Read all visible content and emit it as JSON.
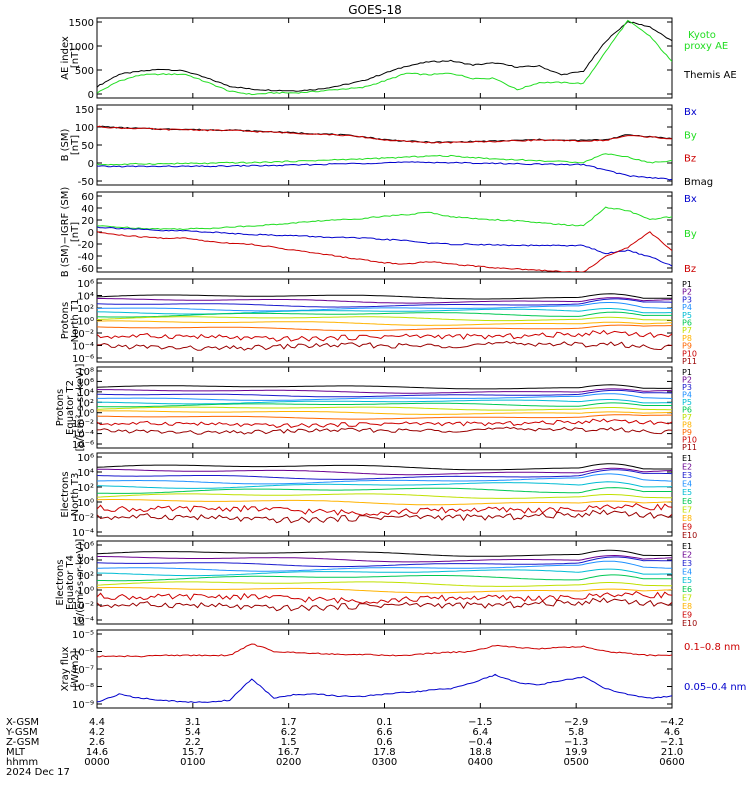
{
  "title": "GOES-18",
  "colors": {
    "black": "#000000",
    "red": "#cc0000",
    "green": "#22dd22",
    "blue": "#0000cc",
    "kyoto": "#22dd22"
  },
  "chart_data": [
    {
      "type": "line",
      "ylabel": [
        "AE index",
        "[nT]"
      ],
      "yticks": [
        "1500",
        "1000",
        "500",
        "0"
      ],
      "ylim": [
        0,
        1550
      ],
      "legend": [
        {
          "name": "Kyoto\nproxy AE",
          "color": "#22dd22"
        },
        {
          "name": "Themis AE",
          "color": "#000000"
        }
      ],
      "series": [
        {
          "name": "Themis AE",
          "color": "#000000",
          "values": [
            220,
            460,
            520,
            560,
            520,
            380,
            230,
            170,
            150,
            140,
            170,
            240,
            330,
            480,
            620,
            700,
            720,
            640,
            680,
            600,
            620,
            450,
            520,
            1100,
            1480,
            1380,
            1100
          ]
        },
        {
          "name": "Kyoto proxy AE",
          "color": "#22dd22",
          "values": [
            100,
            330,
            450,
            460,
            460,
            300,
            130,
            70,
            100,
            100,
            130,
            170,
            200,
            330,
            480,
            450,
            480,
            380,
            380,
            160,
            300,
            300,
            280,
            900,
            1500,
            1200,
            700
          ]
        }
      ]
    },
    {
      "type": "line",
      "ylabel": [
        "B (SM)",
        "[nT]"
      ],
      "yticks": [
        "150",
        "100",
        "50",
        "0",
        "-50"
      ],
      "ylim": [
        -60,
        155
      ],
      "legend": [
        {
          "name": "Bx",
          "color": "#0000cc"
        },
        {
          "name": "By",
          "color": "#22dd22"
        },
        {
          "name": "Bz",
          "color": "#cc0000"
        },
        {
          "name": "Bmag",
          "color": "#000000"
        }
      ],
      "series": [
        {
          "name": "Bmag",
          "color": "#000000",
          "values": [
            98,
            94,
            92,
            90,
            90,
            88,
            88,
            85,
            83,
            80,
            78,
            75,
            70,
            62,
            58,
            55,
            55,
            57,
            58,
            60,
            62,
            60,
            60,
            62,
            75,
            70,
            65
          ]
        },
        {
          "name": "Bz",
          "color": "#cc0000",
          "values": [
            97,
            93,
            92,
            89,
            89,
            87,
            87,
            84,
            82,
            79,
            77,
            74,
            69,
            61,
            57,
            54,
            54,
            56,
            57,
            59,
            61,
            59,
            58,
            60,
            73,
            69,
            64
          ]
        },
        {
          "name": "By",
          "color": "#22dd22",
          "values": [
            -5,
            -5,
            -3,
            -3,
            -2,
            -2,
            0,
            0,
            2,
            4,
            6,
            8,
            10,
            12,
            15,
            18,
            18,
            14,
            10,
            8,
            5,
            3,
            1,
            25,
            15,
            0,
            5
          ]
        },
        {
          "name": "Bx",
          "color": "#0000cc",
          "values": [
            -10,
            -10,
            -10,
            -10,
            -10,
            -10,
            -9,
            -8,
            -8,
            -6,
            -5,
            -3,
            -2,
            0,
            1,
            1,
            0,
            -1,
            -2,
            -3,
            -4,
            -5,
            -5,
            -20,
            -35,
            -40,
            -45
          ]
        }
      ]
    },
    {
      "type": "line",
      "ylabel": [
        "B (SM)−IGRF (SM)",
        "[nT]"
      ],
      "yticks": [
        "60",
        "40",
        "20",
        "0",
        "-20",
        "-40",
        "-60"
      ],
      "ylim": [
        -65,
        65
      ],
      "legend": [
        {
          "name": "Bx",
          "color": "#0000cc"
        },
        {
          "name": "By",
          "color": "#22dd22"
        },
        {
          "name": "Bz",
          "color": "#cc0000"
        }
      ],
      "series": [
        {
          "name": "By",
          "color": "#22dd22",
          "values": [
            10,
            8,
            6,
            5,
            5,
            6,
            8,
            10,
            12,
            15,
            18,
            20,
            22,
            26,
            28,
            32,
            25,
            22,
            20,
            18,
            15,
            12,
            10,
            40,
            35,
            20,
            25
          ]
        },
        {
          "name": "Bx",
          "color": "#0000cc",
          "values": [
            8,
            6,
            4,
            2,
            2,
            0,
            -2,
            -4,
            -5,
            -6,
            -8,
            -9,
            -10,
            -12,
            -14,
            -18,
            -20,
            -20,
            -21,
            -22,
            -22,
            -22,
            -22,
            -35,
            -30,
            -40,
            -55
          ]
        },
        {
          "name": "Bz",
          "color": "#cc0000",
          "values": [
            0,
            -5,
            -8,
            -10,
            -10,
            -15,
            -18,
            -20,
            -25,
            -30,
            -35,
            -40,
            -45,
            -50,
            -52,
            -48,
            -52,
            -55,
            -58,
            -60,
            -62,
            -64,
            -65,
            -40,
            -25,
            0,
            -30
          ]
        }
      ]
    },
    {
      "type": "line",
      "scale": "log",
      "ylabel": [
        "Protons",
        "North T1"
      ],
      "yticks": [
        "10⁶",
        "10⁴",
        "10²",
        "10⁰",
        "10⁻²",
        "10⁻⁴",
        "10⁻⁶"
      ],
      "ylim_exp": [
        -7,
        6
      ],
      "channels": [
        {
          "name": "P1",
          "color": "#000000",
          "base": 3.2
        },
        {
          "name": "P2",
          "color": "#6a0090",
          "base": 2.6
        },
        {
          "name": "P3",
          "color": "#1a1acc",
          "base": 2.0
        },
        {
          "name": "P4",
          "color": "#1e90ff",
          "base": 1.4
        },
        {
          "name": "P5",
          "color": "#00bcd4",
          "base": 0.9
        },
        {
          "name": "P6",
          "color": "#00c853",
          "base": 0.4
        },
        {
          "name": "P7",
          "color": "#c0e000",
          "base": -0.2
        },
        {
          "name": "P8",
          "color": "#ffb300",
          "base": -0.9
        },
        {
          "name": "P9",
          "color": "#ff6600",
          "base": -1.7
        },
        {
          "name": "P10",
          "color": "#cc0000",
          "base": -3.0
        },
        {
          "name": "P11",
          "color": "#990000",
          "base": -4.5
        }
      ]
    },
    {
      "type": "line",
      "scale": "log",
      "ylabel": [
        "Protons",
        "Equator T2",
        "[p/(cm²-s-sr-keV)]"
      ],
      "yticks": [
        "10⁸",
        "10⁶",
        "10⁴",
        "10²",
        "10⁰",
        "10⁻²",
        "10⁻⁴",
        "10⁻⁶"
      ],
      "ylim_exp": [
        -7,
        9
      ],
      "channels": [
        {
          "name": "P1",
          "color": "#000000",
          "base": 5.0
        },
        {
          "name": "P2",
          "color": "#6a0090",
          "base": 4.2
        },
        {
          "name": "P3",
          "color": "#1a1acc",
          "base": 3.5
        },
        {
          "name": "P4",
          "color": "#1e90ff",
          "base": 2.8
        },
        {
          "name": "P5",
          "color": "#00bcd4",
          "base": 2.1
        },
        {
          "name": "P6",
          "color": "#00c853",
          "base": 1.5
        },
        {
          "name": "P7",
          "color": "#c0e000",
          "base": 0.8
        },
        {
          "name": "P8",
          "color": "#ffb300",
          "base": 0.0
        },
        {
          "name": "P9",
          "color": "#ff6600",
          "base": -0.9
        },
        {
          "name": "P10",
          "color": "#cc0000",
          "base": -2.2
        },
        {
          "name": "P11",
          "color": "#990000",
          "base": -3.6
        }
      ]
    },
    {
      "type": "line",
      "scale": "log",
      "ylabel": [
        "Electrons",
        "North T3"
      ],
      "yticks": [
        "10⁶",
        "10⁴",
        "10²",
        "10⁰",
        "10⁻²",
        "10⁻⁴"
      ],
      "ylim_exp": [
        -4.5,
        6.5
      ],
      "channels": [
        {
          "name": "E1",
          "color": "#000000",
          "base": 4.6
        },
        {
          "name": "E2",
          "color": "#6a0090",
          "base": 4.0
        },
        {
          "name": "E3",
          "color": "#1a1acc",
          "base": 3.4
        },
        {
          "name": "E4",
          "color": "#1e90ff",
          "base": 2.8
        },
        {
          "name": "E5",
          "color": "#00bcd4",
          "base": 2.2
        },
        {
          "name": "E6",
          "color": "#00c853",
          "base": 1.5
        },
        {
          "name": "E7",
          "color": "#c0e000",
          "base": 0.8
        },
        {
          "name": "E8",
          "color": "#ffb300",
          "base": 0.0
        },
        {
          "name": "E9",
          "color": "#cc0000",
          "base": -1.0
        },
        {
          "name": "E10",
          "color": "#990000",
          "base": -2.0
        }
      ]
    },
    {
      "type": "line",
      "scale": "log",
      "ylabel": [
        "Electrons",
        "Equator T4",
        "[e/(cm²-s-sr-keV)]"
      ],
      "yticks": [
        "10⁶",
        "10⁴",
        "10²",
        "10⁰",
        "10⁻²",
        "10⁻⁴"
      ],
      "ylim_exp": [
        -4.5,
        6.5
      ],
      "channels": [
        {
          "name": "E1",
          "color": "#000000",
          "base": 4.8
        },
        {
          "name": "E2",
          "color": "#6a0090",
          "base": 4.1
        },
        {
          "name": "E3",
          "color": "#1a1acc",
          "base": 3.5
        },
        {
          "name": "E4",
          "color": "#1e90ff",
          "base": 2.9
        },
        {
          "name": "E5",
          "color": "#00bcd4",
          "base": 2.3
        },
        {
          "name": "E6",
          "color": "#00c853",
          "base": 1.6
        },
        {
          "name": "E7",
          "color": "#c0e000",
          "base": 0.8
        },
        {
          "name": "E8",
          "color": "#ffb300",
          "base": 0.0
        },
        {
          "name": "E9",
          "color": "#cc0000",
          "base": -1.0
        },
        {
          "name": "E10",
          "color": "#990000",
          "base": -2.0
        }
      ]
    },
    {
      "type": "line",
      "scale": "log",
      "ylabel": [
        "Xray flux",
        "[W/m2]"
      ],
      "yticks": [
        "10⁻⁵",
        "10⁻⁶",
        "10⁻⁷",
        "10⁻⁸",
        "10⁻⁹"
      ],
      "ylim_exp": [
        -9,
        -5
      ],
      "legend": [
        {
          "name": "0.1–0.8 nm",
          "color": "#cc0000"
        },
        {
          "name": "0.05–0.4 nm",
          "color": "#0000cc"
        }
      ],
      "series": [
        {
          "name": "0.1–0.8 nm",
          "color": "#cc0000",
          "values": [
            -6.35,
            -6.35,
            -6.35,
            -6.3,
            -6.3,
            -6.3,
            -6.3,
            -5.7,
            -6.1,
            -6.15,
            -6.2,
            -6.25,
            -6.25,
            -6.3,
            -6.3,
            -6.2,
            -6.15,
            -6.1,
            -5.8,
            -5.9,
            -5.95,
            -5.9,
            -5.85,
            -6.1,
            -6.2,
            -6.3,
            -6.3
          ]
        },
        {
          "name": "0.05–0.4 nm",
          "color": "#0000cc",
          "values": [
            -8.7,
            -8.3,
            -8.5,
            -8.6,
            -8.7,
            -8.7,
            -8.6,
            -7.5,
            -8.5,
            -8.3,
            -8.3,
            -8.4,
            -8.4,
            -8.3,
            -8.2,
            -8.1,
            -8.0,
            -7.7,
            -7.3,
            -7.7,
            -7.8,
            -7.6,
            -7.4,
            -8.0,
            -8.3,
            -8.5,
            -8.4
          ]
        }
      ]
    }
  ],
  "xaxis": {
    "rows": [
      {
        "label": "X-GSM",
        "values": [
          "4.4",
          "3.1",
          "1.7",
          "0.1",
          "−1.5",
          "−2.9",
          "−4.2"
        ]
      },
      {
        "label": "Y-GSM",
        "values": [
          "4.2",
          "5.4",
          "6.2",
          "6.6",
          "6.4",
          "5.8",
          "4.6"
        ]
      },
      {
        "label": "Z-GSM",
        "values": [
          "2.6",
          "2.2",
          "1.5",
          "0.6",
          "−0.4",
          "−1.3",
          "−2.1"
        ]
      },
      {
        "label": "MLT",
        "values": [
          "14.6",
          "15.7",
          "16.7",
          "17.8",
          "18.8",
          "19.9",
          "21.0"
        ]
      },
      {
        "label": "hhmm",
        "values": [
          "0000",
          "0100",
          "0200",
          "0300",
          "0400",
          "0500",
          "0600"
        ]
      }
    ],
    "date": "2024 Dec 17"
  }
}
